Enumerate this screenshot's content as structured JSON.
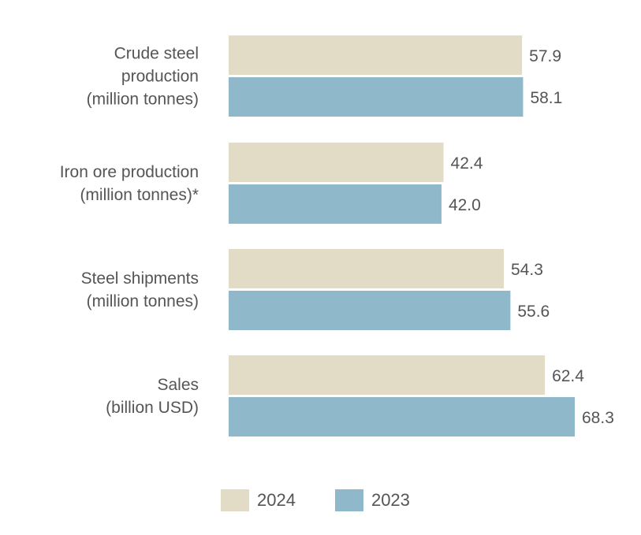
{
  "chart_data": {
    "type": "bar",
    "orientation": "horizontal",
    "categories": [
      [
        "Crude steel",
        "production",
        "(million tonnes)"
      ],
      [
        "Iron ore production",
        "(million tonnes)*"
      ],
      [
        "Steel shipments",
        "(million tonnes)"
      ],
      [
        "Sales",
        "(billion USD)"
      ]
    ],
    "series": [
      {
        "name": "2024",
        "color": "#e2dcc6",
        "values": [
          57.9,
          42.4,
          54.3,
          62.4
        ],
        "labels": [
          "57.9",
          "42.4",
          "54.3",
          "62.4"
        ]
      },
      {
        "name": "2023",
        "color": "#8fb8cb",
        "values": [
          58.1,
          42.0,
          55.6,
          68.3
        ],
        "labels": [
          "58.1",
          "42.0",
          "55.6",
          "68.3"
        ]
      }
    ],
    "xlim": [
      0,
      68.3
    ],
    "grid": false,
    "legend_position": "bottom"
  }
}
